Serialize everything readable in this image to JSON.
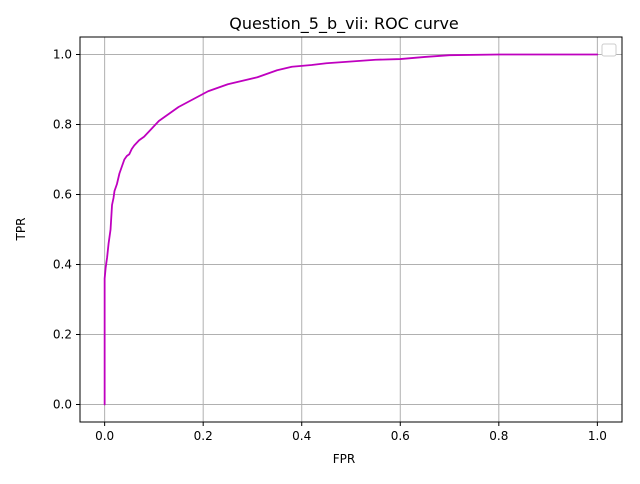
{
  "chart_data": {
    "type": "line",
    "title": "Question_5_b_vii: ROC curve",
    "xlabel": "FPR",
    "ylabel": "TPR",
    "xlim": [
      -0.05,
      1.05
    ],
    "ylim": [
      -0.05,
      1.05
    ],
    "x_ticks": [
      0.0,
      0.2,
      0.4,
      0.6,
      0.8,
      1.0
    ],
    "y_ticks": [
      0.0,
      0.2,
      0.4,
      0.6,
      0.8,
      1.0
    ],
    "x_tick_labels": [
      "0.0",
      "0.2",
      "0.4",
      "0.6",
      "0.8",
      "1.0"
    ],
    "y_tick_labels": [
      "0.0",
      "0.2",
      "0.4",
      "0.6",
      "0.8",
      "1.0"
    ],
    "grid": true,
    "legend": {
      "placement": "top-right",
      "entries": []
    },
    "colors": {
      "line": "#bf00bf",
      "grid": "#b0b0b0",
      "axes": "#000000"
    },
    "series": [
      {
        "x": [
          0.0,
          0.0,
          0.002,
          0.005,
          0.008,
          0.012,
          0.015,
          0.018,
          0.02,
          0.025,
          0.03,
          0.035,
          0.04,
          0.045,
          0.05,
          0.055,
          0.06,
          0.07,
          0.08,
          0.09,
          0.1,
          0.11,
          0.12,
          0.13,
          0.15,
          0.17,
          0.19,
          0.21,
          0.23,
          0.25,
          0.28,
          0.31,
          0.35,
          0.38,
          0.42,
          0.45,
          0.5,
          0.55,
          0.6,
          0.65,
          0.7,
          0.8,
          0.9,
          1.0
        ],
        "y": [
          0.0,
          0.36,
          0.39,
          0.42,
          0.46,
          0.5,
          0.57,
          0.59,
          0.61,
          0.63,
          0.66,
          0.68,
          0.7,
          0.71,
          0.715,
          0.73,
          0.74,
          0.755,
          0.765,
          0.78,
          0.795,
          0.81,
          0.82,
          0.83,
          0.85,
          0.865,
          0.88,
          0.895,
          0.905,
          0.915,
          0.925,
          0.935,
          0.955,
          0.965,
          0.97,
          0.975,
          0.98,
          0.985,
          0.987,
          0.993,
          0.998,
          1.0,
          1.0,
          1.0
        ]
      }
    ]
  }
}
